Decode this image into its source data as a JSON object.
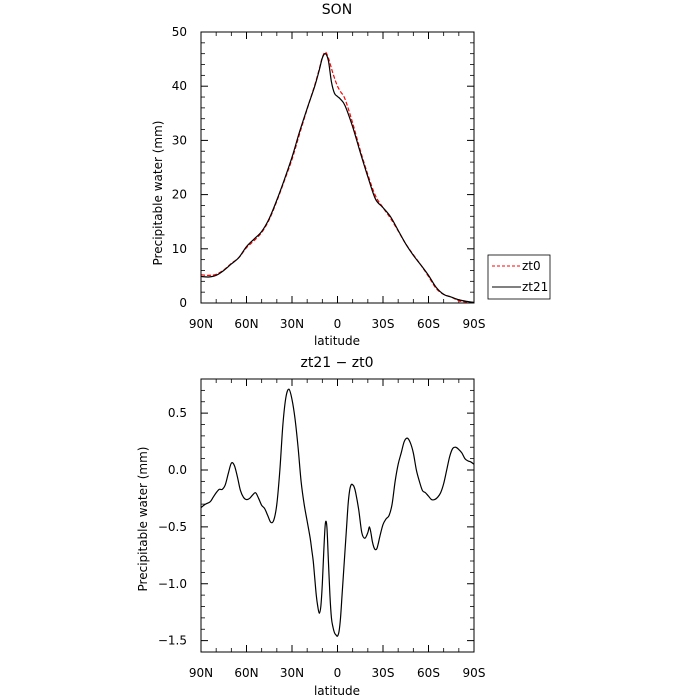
{
  "chart_data": [
    {
      "type": "line",
      "title": "SON",
      "xlabel": "latitude",
      "ylabel": "Precipitable water (mm)",
      "xlim": [
        90,
        -90
      ],
      "ylim": [
        0,
        50
      ],
      "xticks": [
        90,
        60,
        30,
        0,
        -30,
        -60,
        -90
      ],
      "xtick_labels": [
        "90N",
        "60N",
        "30N",
        "0",
        "30S",
        "60S",
        "90S"
      ],
      "yticks": [
        0,
        10,
        20,
        30,
        40,
        50
      ],
      "ytick_labels": [
        "0",
        "10",
        "20",
        "30",
        "40",
        "50"
      ],
      "grid": false,
      "legend_position": "right",
      "series": [
        {
          "name": "zt0",
          "color": "#ff0000",
          "dash": "dashed",
          "x": [
            90,
            85,
            80,
            75,
            70,
            65,
            60,
            55,
            50,
            45,
            40,
            35,
            30,
            25,
            20,
            15,
            12,
            10,
            8,
            6,
            4,
            2,
            0,
            -2,
            -5,
            -10,
            -15,
            -20,
            -25,
            -30,
            -35,
            -40,
            -45,
            -50,
            -55,
            -60,
            -65,
            -70,
            -75,
            -80,
            -85,
            -90
          ],
          "y": [
            5.2,
            5.1,
            5.3,
            6.1,
            7.3,
            8.4,
            10.2,
            11.5,
            13.0,
            15.4,
            18.8,
            22.6,
            26.5,
            31.2,
            35.8,
            40.2,
            43.2,
            45.3,
            46.3,
            45.2,
            43.3,
            41.5,
            40.0,
            39.0,
            37.6,
            33.2,
            28.2,
            23.7,
            19.8,
            17.6,
            15.6,
            13.3,
            10.9,
            8.9,
            7.0,
            4.9,
            2.7,
            1.6,
            1.1,
            0.4,
            0.2,
            0.1
          ]
        },
        {
          "name": "zt21",
          "color": "#000000",
          "dash": "solid",
          "x": [
            90,
            85,
            80,
            75,
            70,
            65,
            60,
            55,
            50,
            45,
            40,
            35,
            30,
            25,
            20,
            15,
            12,
            10,
            8,
            6,
            4,
            2,
            0,
            -2,
            -5,
            -10,
            -15,
            -20,
            -25,
            -30,
            -35,
            -40,
            -45,
            -50,
            -55,
            -60,
            -65,
            -70,
            -75,
            -80,
            -85,
            -90
          ],
          "y": [
            4.9,
            4.8,
            5.1,
            6.0,
            7.2,
            8.4,
            10.4,
            11.8,
            13.2,
            15.6,
            19.0,
            22.8,
            26.9,
            31.6,
            35.9,
            40.0,
            43.0,
            45.2,
            46.0,
            44.7,
            40.8,
            38.7,
            38.1,
            37.6,
            36.4,
            32.5,
            27.8,
            23.3,
            19.2,
            17.6,
            15.9,
            13.4,
            10.9,
            8.8,
            7.0,
            5.1,
            2.9,
            1.6,
            1.1,
            0.6,
            0.3,
            0.1
          ]
        }
      ]
    },
    {
      "type": "line",
      "title": "zt21 − zt0",
      "xlabel": "latitude",
      "ylabel": "Precipitable water (mm)",
      "xlim": [
        90,
        -90
      ],
      "ylim": [
        -1.6,
        0.8
      ],
      "xticks": [
        90,
        60,
        30,
        0,
        -30,
        -60,
        -90
      ],
      "xtick_labels": [
        "90N",
        "60N",
        "30N",
        "0",
        "30S",
        "60S",
        "90S"
      ],
      "yticks": [
        0.5,
        0.0,
        -0.5,
        -1.0,
        -1.5
      ],
      "ytick_labels": [
        "0.5",
        "0.0",
        "−0.5",
        "−1.0",
        "−1.5"
      ],
      "grid": false,
      "series": [
        {
          "color": "#000000",
          "dash": "solid",
          "x": [
            90,
            87,
            84,
            82,
            80,
            78,
            76,
            74,
            72,
            70,
            68,
            66,
            64,
            62,
            60,
            58,
            56,
            54,
            52,
            50,
            48,
            46,
            44,
            42,
            40,
            38,
            36,
            34,
            32,
            30,
            28,
            26,
            24,
            22,
            20,
            18,
            17,
            16,
            15,
            14,
            13,
            12,
            11,
            10,
            9,
            8,
            7,
            6,
            5,
            4,
            3,
            2,
            1,
            0,
            -1,
            -2,
            -3,
            -4,
            -5,
            -6,
            -7,
            -8,
            -9,
            -10,
            -11,
            -12,
            -14,
            -16,
            -18,
            -20,
            -21,
            -22,
            -23,
            -24,
            -25,
            -26,
            -27,
            -28,
            -30,
            -32,
            -34,
            -36,
            -38,
            -40,
            -42,
            -44,
            -46,
            -48,
            -50,
            -52,
            -54,
            -56,
            -58,
            -60,
            -62,
            -64,
            -66,
            -68,
            -70,
            -72,
            -74,
            -76,
            -78,
            -80,
            -82,
            -84,
            -86,
            -88,
            -90
          ],
          "y": [
            -0.33,
            -0.3,
            -0.28,
            -0.24,
            -0.2,
            -0.17,
            -0.17,
            -0.13,
            -0.03,
            0.06,
            0.04,
            -0.06,
            -0.18,
            -0.24,
            -0.26,
            -0.25,
            -0.22,
            -0.2,
            -0.25,
            -0.31,
            -0.34,
            -0.4,
            -0.46,
            -0.44,
            -0.3,
            0.0,
            0.4,
            0.64,
            0.71,
            0.62,
            0.45,
            0.2,
            -0.1,
            -0.3,
            -0.45,
            -0.6,
            -0.7,
            -0.8,
            -0.95,
            -1.1,
            -1.2,
            -1.26,
            -1.2,
            -1.0,
            -0.7,
            -0.47,
            -0.5,
            -0.8,
            -1.1,
            -1.3,
            -1.38,
            -1.43,
            -1.45,
            -1.46,
            -1.42,
            -1.3,
            -1.1,
            -0.9,
            -0.7,
            -0.5,
            -0.3,
            -0.18,
            -0.13,
            -0.13,
            -0.15,
            -0.2,
            -0.35,
            -0.55,
            -0.6,
            -0.55,
            -0.5,
            -0.55,
            -0.63,
            -0.68,
            -0.7,
            -0.69,
            -0.64,
            -0.58,
            -0.48,
            -0.43,
            -0.4,
            -0.3,
            -0.1,
            0.05,
            0.15,
            0.25,
            0.28,
            0.24,
            0.15,
            0.0,
            -0.1,
            -0.18,
            -0.2,
            -0.23,
            -0.26,
            -0.26,
            -0.24,
            -0.2,
            -0.12,
            0.0,
            0.12,
            0.19,
            0.2,
            0.18,
            0.15,
            0.1,
            0.08,
            0.07,
            0.05
          ]
        }
      ]
    }
  ],
  "legend": {
    "items": [
      {
        "label": "zt0",
        "color": "#ff0000",
        "dash": "dashed"
      },
      {
        "label": "zt21",
        "color": "#000000",
        "dash": "solid"
      }
    ]
  }
}
